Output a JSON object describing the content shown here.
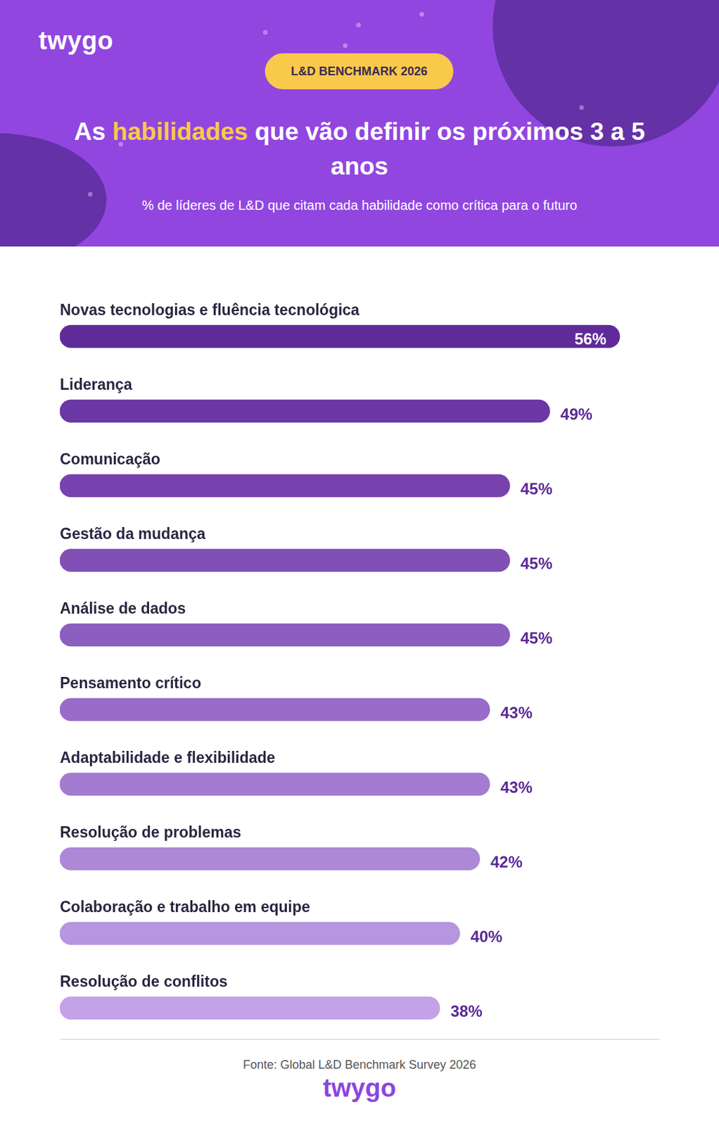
{
  "brand": "twygo",
  "badge": "L&D BENCHMARK 2026",
  "source": "Fonte: Global L&D Benchmark Survey 2026",
  "chart_data": {
    "type": "bar",
    "title": "As habilidades que vão definir os próximos 3 a 5 anos",
    "title_highlight": "habilidades",
    "subtitle": "% de líderes de L&D que citam cada habilidade como crítica para o futuro",
    "orientation": "horizontal",
    "categories": [
      "Novas tecnologias e fluência tecnológica",
      "Liderança",
      "Comunicação",
      "Gestão da mudança",
      "Análise de dados",
      "Pensamento crítico",
      "Adaptabilidade e flexibilidade",
      "Resolução de problemas",
      "Colaboração e trabalho em equipe",
      "Resolução de conflitos"
    ],
    "values": [
      56,
      49,
      45,
      45,
      45,
      43,
      43,
      42,
      40,
      38
    ],
    "value_labels": [
      "56%",
      "49%",
      "45%",
      "45%",
      "45%",
      "43%",
      "43%",
      "42%",
      "40%",
      "38%"
    ],
    "colors": [
      "#5f2b99",
      "#6a37a5",
      "#7842ae",
      "#8150b6",
      "#8c5ebf",
      "#9a6cc7",
      "#a37bd0",
      "#ad88d7",
      "#b895df",
      "#c3a2e8"
    ],
    "xlim": [
      0,
      60
    ],
    "data_labels": true,
    "tick_labels": false,
    "grid": false
  }
}
